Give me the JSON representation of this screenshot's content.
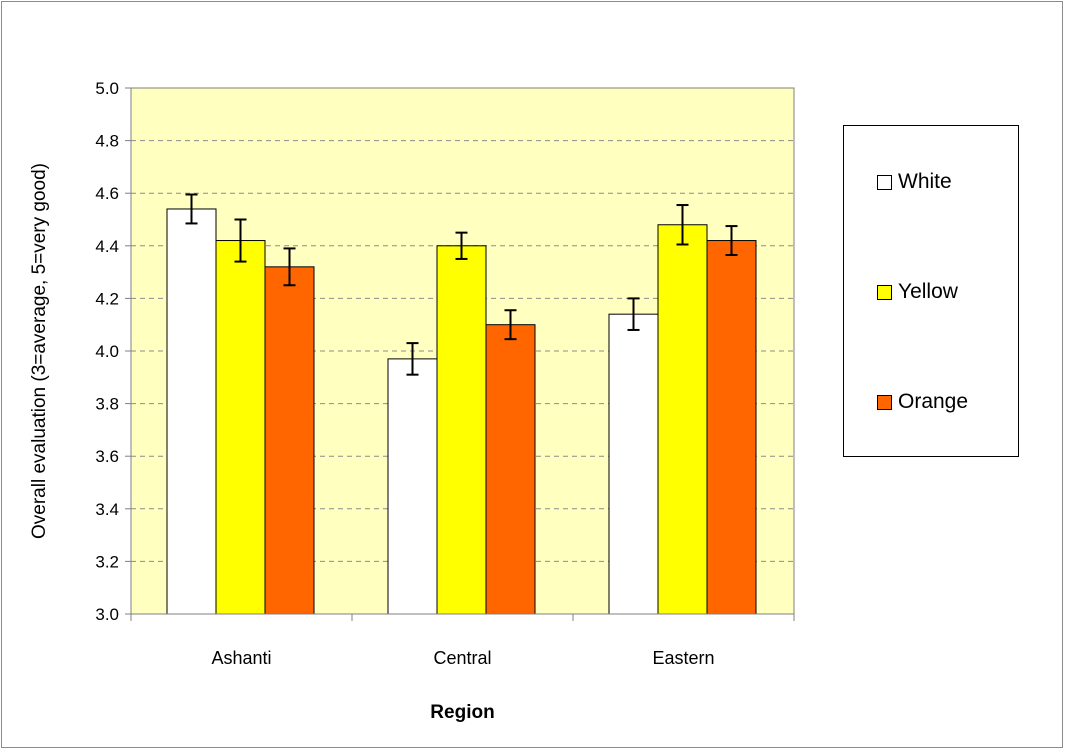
{
  "chart_data": {
    "type": "bar",
    "categories": [
      "Ashanti",
      "Central",
      "Eastern"
    ],
    "series": [
      {
        "name": "White",
        "color": "#ffffff",
        "values": [
          4.54,
          3.97,
          4.14
        ],
        "errors": [
          0.055,
          0.06,
          0.06
        ]
      },
      {
        "name": "Yellow",
        "color": "#ffff00",
        "values": [
          4.42,
          4.4,
          4.48
        ],
        "errors": [
          0.08,
          0.05,
          0.075
        ]
      },
      {
        "name": "Orange",
        "color": "#ff6600",
        "values": [
          4.32,
          4.1,
          4.42
        ],
        "errors": [
          0.07,
          0.055,
          0.055
        ]
      }
    ],
    "xlabel": "Region",
    "ylabel": "Overall evaluation (3=average, 5=very good)",
    "ylim": [
      3.0,
      5.0
    ],
    "yticks": [
      "3.0",
      "3.2",
      "3.4",
      "3.6",
      "3.8",
      "4.0",
      "4.2",
      "4.4",
      "4.6",
      "4.8",
      "5.0"
    ],
    "grid": true,
    "legend_position": "right",
    "plot_background": "#ffffc0"
  }
}
